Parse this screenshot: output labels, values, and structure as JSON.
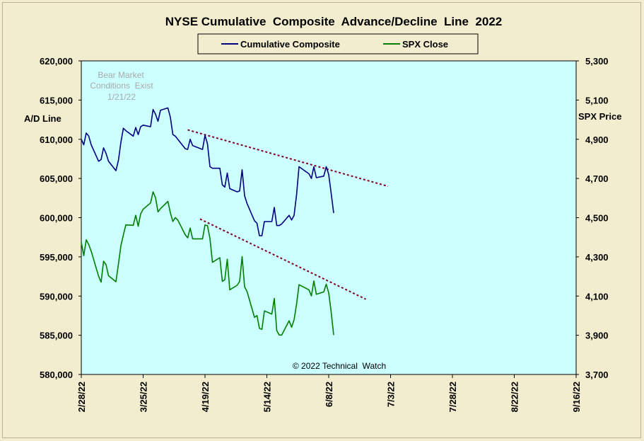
{
  "chart_data": {
    "type": "line",
    "title": "NYSE Cumulative  Composite  Advance/Decline  Line  2022",
    "left_axis": {
      "label": "A/D Line",
      "ylim": [
        580000,
        620000
      ],
      "ticks": [
        {
          "v": 580000,
          "label": "580,000"
        },
        {
          "v": 585000,
          "label": "585,000"
        },
        {
          "v": 590000,
          "label": "590,000"
        },
        {
          "v": 595000,
          "label": "595,000"
        },
        {
          "v": 600000,
          "label": "600,000"
        },
        {
          "v": 605000,
          "label": "605,000"
        },
        {
          "v": 610000,
          "label": "610,000"
        },
        {
          "v": 615000,
          "label": "615,000"
        },
        {
          "v": 620000,
          "label": "620,000"
        }
      ]
    },
    "right_axis": {
      "label": "SPX Price",
      "ylim": [
        3700,
        5300
      ],
      "ticks": [
        {
          "v": 3700,
          "label": "3,700"
        },
        {
          "v": 3900,
          "label": "3,900"
        },
        {
          "v": 4100,
          "label": "4,100"
        },
        {
          "v": 4300,
          "label": "4,300"
        },
        {
          "v": 4500,
          "label": "4,500"
        },
        {
          "v": 4700,
          "label": "4,700"
        },
        {
          "v": 4900,
          "label": "4,900"
        },
        {
          "v": 5100,
          "label": "5,100"
        },
        {
          "v": 5300,
          "label": "5,300"
        }
      ]
    },
    "x_axis": {
      "start": "2022-02-28",
      "end": "2022-09-16",
      "ticks": [
        {
          "date": "2022-02-28",
          "label": "2/28/22"
        },
        {
          "date": "2022-03-25",
          "label": "3/25/22"
        },
        {
          "date": "2022-04-19",
          "label": "4/19/22"
        },
        {
          "date": "2022-05-14",
          "label": "5/14/22"
        },
        {
          "date": "2022-06-08",
          "label": "6/8/22"
        },
        {
          "date": "2022-07-03",
          "label": "7/3/22"
        },
        {
          "date": "2022-07-28",
          "label": "7/28/22"
        },
        {
          "date": "2022-08-22",
          "label": "8/22/22"
        },
        {
          "date": "2022-09-16",
          "label": "9/16/22"
        }
      ]
    },
    "legend": {
      "position": "top-center"
    },
    "series": [
      {
        "name": "Cumulative Composite",
        "axis": "left",
        "color": "#000080",
        "points": [
          [
            "2022-02-28",
            610000
          ],
          [
            "2022-03-01",
            609300
          ],
          [
            "2022-03-02",
            610800
          ],
          [
            "2022-03-03",
            610400
          ],
          [
            "2022-03-04",
            609300
          ],
          [
            "2022-03-07",
            607200
          ],
          [
            "2022-03-08",
            607400
          ],
          [
            "2022-03-09",
            608900
          ],
          [
            "2022-03-10",
            608200
          ],
          [
            "2022-03-11",
            607200
          ],
          [
            "2022-03-14",
            606000
          ],
          [
            "2022-03-15",
            607300
          ],
          [
            "2022-03-16",
            609600
          ],
          [
            "2022-03-17",
            611400
          ],
          [
            "2022-03-18",
            611100
          ],
          [
            "2022-03-21",
            610400
          ],
          [
            "2022-03-22",
            611500
          ],
          [
            "2022-03-23",
            610600
          ],
          [
            "2022-03-24",
            611600
          ],
          [
            "2022-03-25",
            611800
          ],
          [
            "2022-03-28",
            611600
          ],
          [
            "2022-03-29",
            613800
          ],
          [
            "2022-03-30",
            613200
          ],
          [
            "2022-03-31",
            612300
          ],
          [
            "2022-04-01",
            613700
          ],
          [
            "2022-04-04",
            614000
          ],
          [
            "2022-04-05",
            612800
          ],
          [
            "2022-04-06",
            610600
          ],
          [
            "2022-04-07",
            610400
          ],
          [
            "2022-04-08",
            610000
          ],
          [
            "2022-04-11",
            608800
          ],
          [
            "2022-04-12",
            608700
          ],
          [
            "2022-04-13",
            610000
          ],
          [
            "2022-04-14",
            609200
          ],
          [
            "2022-04-18",
            608700
          ],
          [
            "2022-04-19",
            610500
          ],
          [
            "2022-04-20",
            609400
          ],
          [
            "2022-04-21",
            606500
          ],
          [
            "2022-04-22",
            606300
          ],
          [
            "2022-04-25",
            606300
          ],
          [
            "2022-04-26",
            604200
          ],
          [
            "2022-04-27",
            603900
          ],
          [
            "2022-04-28",
            605700
          ],
          [
            "2022-04-29",
            603700
          ],
          [
            "2022-05-02",
            603300
          ],
          [
            "2022-05-03",
            603400
          ],
          [
            "2022-05-04",
            606100
          ],
          [
            "2022-05-05",
            602800
          ],
          [
            "2022-05-06",
            601800
          ],
          [
            "2022-05-09",
            599600
          ],
          [
            "2022-05-10",
            599300
          ],
          [
            "2022-05-11",
            597700
          ],
          [
            "2022-05-12",
            597700
          ],
          [
            "2022-05-13",
            599500
          ],
          [
            "2022-05-16",
            599500
          ],
          [
            "2022-05-17",
            601300
          ],
          [
            "2022-05-18",
            599000
          ],
          [
            "2022-05-19",
            599000
          ],
          [
            "2022-05-20",
            599200
          ],
          [
            "2022-05-23",
            600300
          ],
          [
            "2022-05-24",
            599700
          ],
          [
            "2022-05-25",
            600300
          ],
          [
            "2022-05-26",
            602900
          ],
          [
            "2022-05-27",
            606500
          ],
          [
            "2022-05-31",
            605600
          ],
          [
            "2022-06-01",
            605000
          ],
          [
            "2022-06-02",
            606500
          ],
          [
            "2022-06-03",
            605100
          ],
          [
            "2022-06-06",
            605300
          ],
          [
            "2022-06-07",
            606500
          ],
          [
            "2022-06-08",
            605500
          ],
          [
            "2022-06-09",
            603100
          ],
          [
            "2022-06-10",
            600600
          ]
        ]
      },
      {
        "name": "SPX Close",
        "axis": "right",
        "color": "#007f00",
        "points": [
          [
            "2022-02-28",
            4374
          ],
          [
            "2022-03-01",
            4306
          ],
          [
            "2022-03-02",
            4387
          ],
          [
            "2022-03-03",
            4363
          ],
          [
            "2022-03-04",
            4329
          ],
          [
            "2022-03-07",
            4201
          ],
          [
            "2022-03-08",
            4171
          ],
          [
            "2022-03-09",
            4278
          ],
          [
            "2022-03-10",
            4260
          ],
          [
            "2022-03-11",
            4204
          ],
          [
            "2022-03-14",
            4173
          ],
          [
            "2022-03-15",
            4262
          ],
          [
            "2022-03-16",
            4357
          ],
          [
            "2022-03-17",
            4412
          ],
          [
            "2022-03-18",
            4463
          ],
          [
            "2022-03-21",
            4461
          ],
          [
            "2022-03-22",
            4512
          ],
          [
            "2022-03-23",
            4456
          ],
          [
            "2022-03-24",
            4520
          ],
          [
            "2022-03-25",
            4543
          ],
          [
            "2022-03-28",
            4575
          ],
          [
            "2022-03-29",
            4632
          ],
          [
            "2022-03-30",
            4602
          ],
          [
            "2022-03-31",
            4530
          ],
          [
            "2022-04-01",
            4546
          ],
          [
            "2022-04-04",
            4583
          ],
          [
            "2022-04-05",
            4525
          ],
          [
            "2022-04-06",
            4481
          ],
          [
            "2022-04-07",
            4500
          ],
          [
            "2022-04-08",
            4488
          ],
          [
            "2022-04-11",
            4413
          ],
          [
            "2022-04-12",
            4397
          ],
          [
            "2022-04-13",
            4447
          ],
          [
            "2022-04-14",
            4392
          ],
          [
            "2022-04-18",
            4392
          ],
          [
            "2022-04-19",
            4463
          ],
          [
            "2022-04-20",
            4459
          ],
          [
            "2022-04-21",
            4394
          ],
          [
            "2022-04-22",
            4272
          ],
          [
            "2022-04-25",
            4296
          ],
          [
            "2022-04-26",
            4175
          ],
          [
            "2022-04-27",
            4184
          ],
          [
            "2022-04-28",
            4288
          ],
          [
            "2022-04-29",
            4132
          ],
          [
            "2022-05-02",
            4155
          ],
          [
            "2022-05-03",
            4175
          ],
          [
            "2022-05-04",
            4301
          ],
          [
            "2022-05-05",
            4147
          ],
          [
            "2022-05-06",
            4123
          ],
          [
            "2022-05-09",
            3991
          ],
          [
            "2022-05-10",
            4001
          ],
          [
            "2022-05-11",
            3935
          ],
          [
            "2022-05-12",
            3930
          ],
          [
            "2022-05-13",
            4024
          ],
          [
            "2022-05-16",
            4008
          ],
          [
            "2022-05-17",
            4088
          ],
          [
            "2022-05-18",
            3924
          ],
          [
            "2022-05-19",
            3901
          ],
          [
            "2022-05-20",
            3901
          ],
          [
            "2022-05-23",
            3974
          ],
          [
            "2022-05-24",
            3941
          ],
          [
            "2022-05-25",
            3979
          ],
          [
            "2022-05-26",
            4058
          ],
          [
            "2022-05-27",
            4158
          ],
          [
            "2022-05-31",
            4132
          ],
          [
            "2022-06-01",
            4101
          ],
          [
            "2022-06-02",
            4177
          ],
          [
            "2022-06-03",
            4109
          ],
          [
            "2022-06-06",
            4121
          ],
          [
            "2022-06-07",
            4161
          ],
          [
            "2022-06-08",
            4116
          ],
          [
            "2022-06-09",
            4018
          ],
          [
            "2022-06-10",
            3901
          ]
        ]
      }
    ],
    "trendlines": [
      {
        "axis": "left",
        "from": [
          "2022-04-12",
          611200
        ],
        "to": [
          "2022-07-02",
          604000
        ],
        "color": "#7f0020",
        "style": "dashed"
      },
      {
        "axis": "right",
        "from": [
          "2022-04-17",
          4493
        ],
        "to": [
          "2022-06-23",
          4084
        ],
        "color": "#7f0020",
        "style": "dashed"
      }
    ],
    "annotations": [
      {
        "lines": [
          "Bear Market",
          "Conditions  Exist",
          "1/21/22"
        ],
        "color": "#a9a9a9"
      },
      {
        "lines": [
          "© 2022 Technical  Watch"
        ],
        "color": "#000000"
      }
    ],
    "colors": {
      "plot_bg": "#ccffff",
      "page_bg": "#f3edcf",
      "axis": "#000000"
    }
  }
}
